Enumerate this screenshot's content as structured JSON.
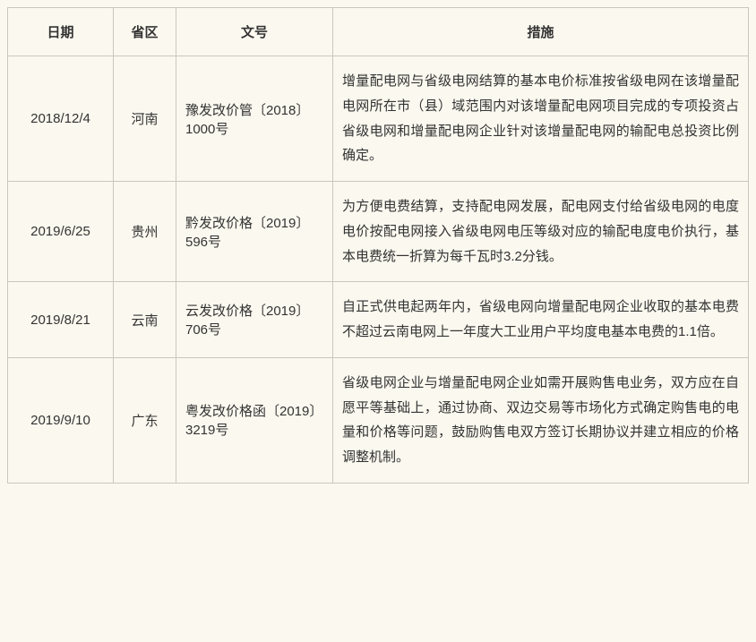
{
  "colors": {
    "page_bg": "#fbf8ef",
    "border": "#c8c8c0",
    "text": "#333333"
  },
  "columns": [
    {
      "key": "date",
      "label": "日期"
    },
    {
      "key": "province",
      "label": "省区"
    },
    {
      "key": "docno",
      "label": "文号"
    },
    {
      "key": "measure",
      "label": "措施"
    }
  ],
  "rows": [
    {
      "date": "2018/12/4",
      "province": "河南",
      "docno": "豫发改价管〔2018〕1000号",
      "measure": "增量配电网与省级电网结算的基本电价标准按省级电网在该增量配电网所在市（县）域范围内对该增量配电网项目完成的专项投资占省级电网和增量配电网企业针对该增量配电网的输配电总投资比例确定。"
    },
    {
      "date": "2019/6/25",
      "province": "贵州",
      "docno": "黔发改价格〔2019〕596号",
      "measure": "为方便电费结算，支持配电网发展，配电网支付给省级电网的电度电价按配电网接入省级电网电压等级对应的输配电度电价执行，基本电费统一折算为每千瓦时3.2分钱。"
    },
    {
      "date": "2019/8/21",
      "province": "云南",
      "docno": "云发改价格〔2019〕706号",
      "measure": "自正式供电起两年内，省级电网向增量配电网企业收取的基本电费不超过云南电网上一年度大工业用户平均度电基本电费的1.1倍。"
    },
    {
      "date": "2019/9/10",
      "province": "广东",
      "docno": "粤发改价格函〔2019〕3219号",
      "measure": "省级电网企业与增量配电网企业如需开展购售电业务，双方应在自愿平等基础上，通过协商、双边交易等市场化方式确定购售电的电量和价格等问题，鼓励购售电双方签订长期协议并建立相应的价格调整机制。"
    }
  ]
}
